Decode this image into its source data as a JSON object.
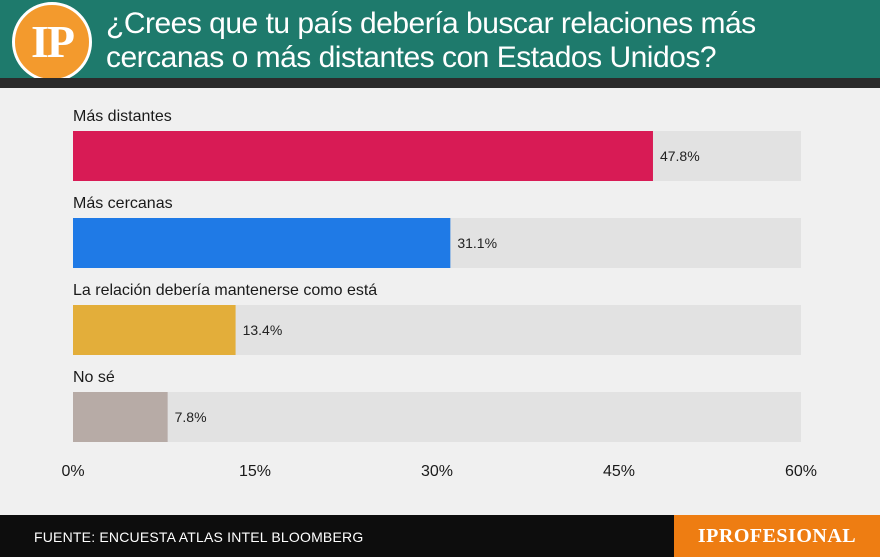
{
  "header": {
    "logo_text": "IP",
    "title": "¿Crees que tu país debería buscar relaciones más cercanas o más distantes con Estados Unidos?"
  },
  "chart_data": {
    "type": "bar",
    "orientation": "horizontal",
    "categories": [
      "Más distantes",
      "Más cercanas",
      "La relación debería mantenerse como está",
      "No sé"
    ],
    "values": [
      47.8,
      31.1,
      13.4,
      7.8
    ],
    "value_labels": [
      "47.8%",
      "31.1%",
      "13.4%",
      "7.8%"
    ],
    "colors": [
      "#d81b55",
      "#1f7ae6",
      "#e3ae3a",
      "#b7aba6"
    ],
    "track_color": "#e2e2e2",
    "xlim": [
      0,
      60
    ],
    "xticks": [
      0,
      15,
      30,
      45,
      60
    ],
    "xtick_labels": [
      "0%",
      "15%",
      "30%",
      "45%",
      "60%"
    ],
    "grid": false
  },
  "footer": {
    "source": "FUENTE: ENCUESTA ATLAS INTEL BLOOMBERG",
    "brand": "IPROFESIONAL"
  }
}
